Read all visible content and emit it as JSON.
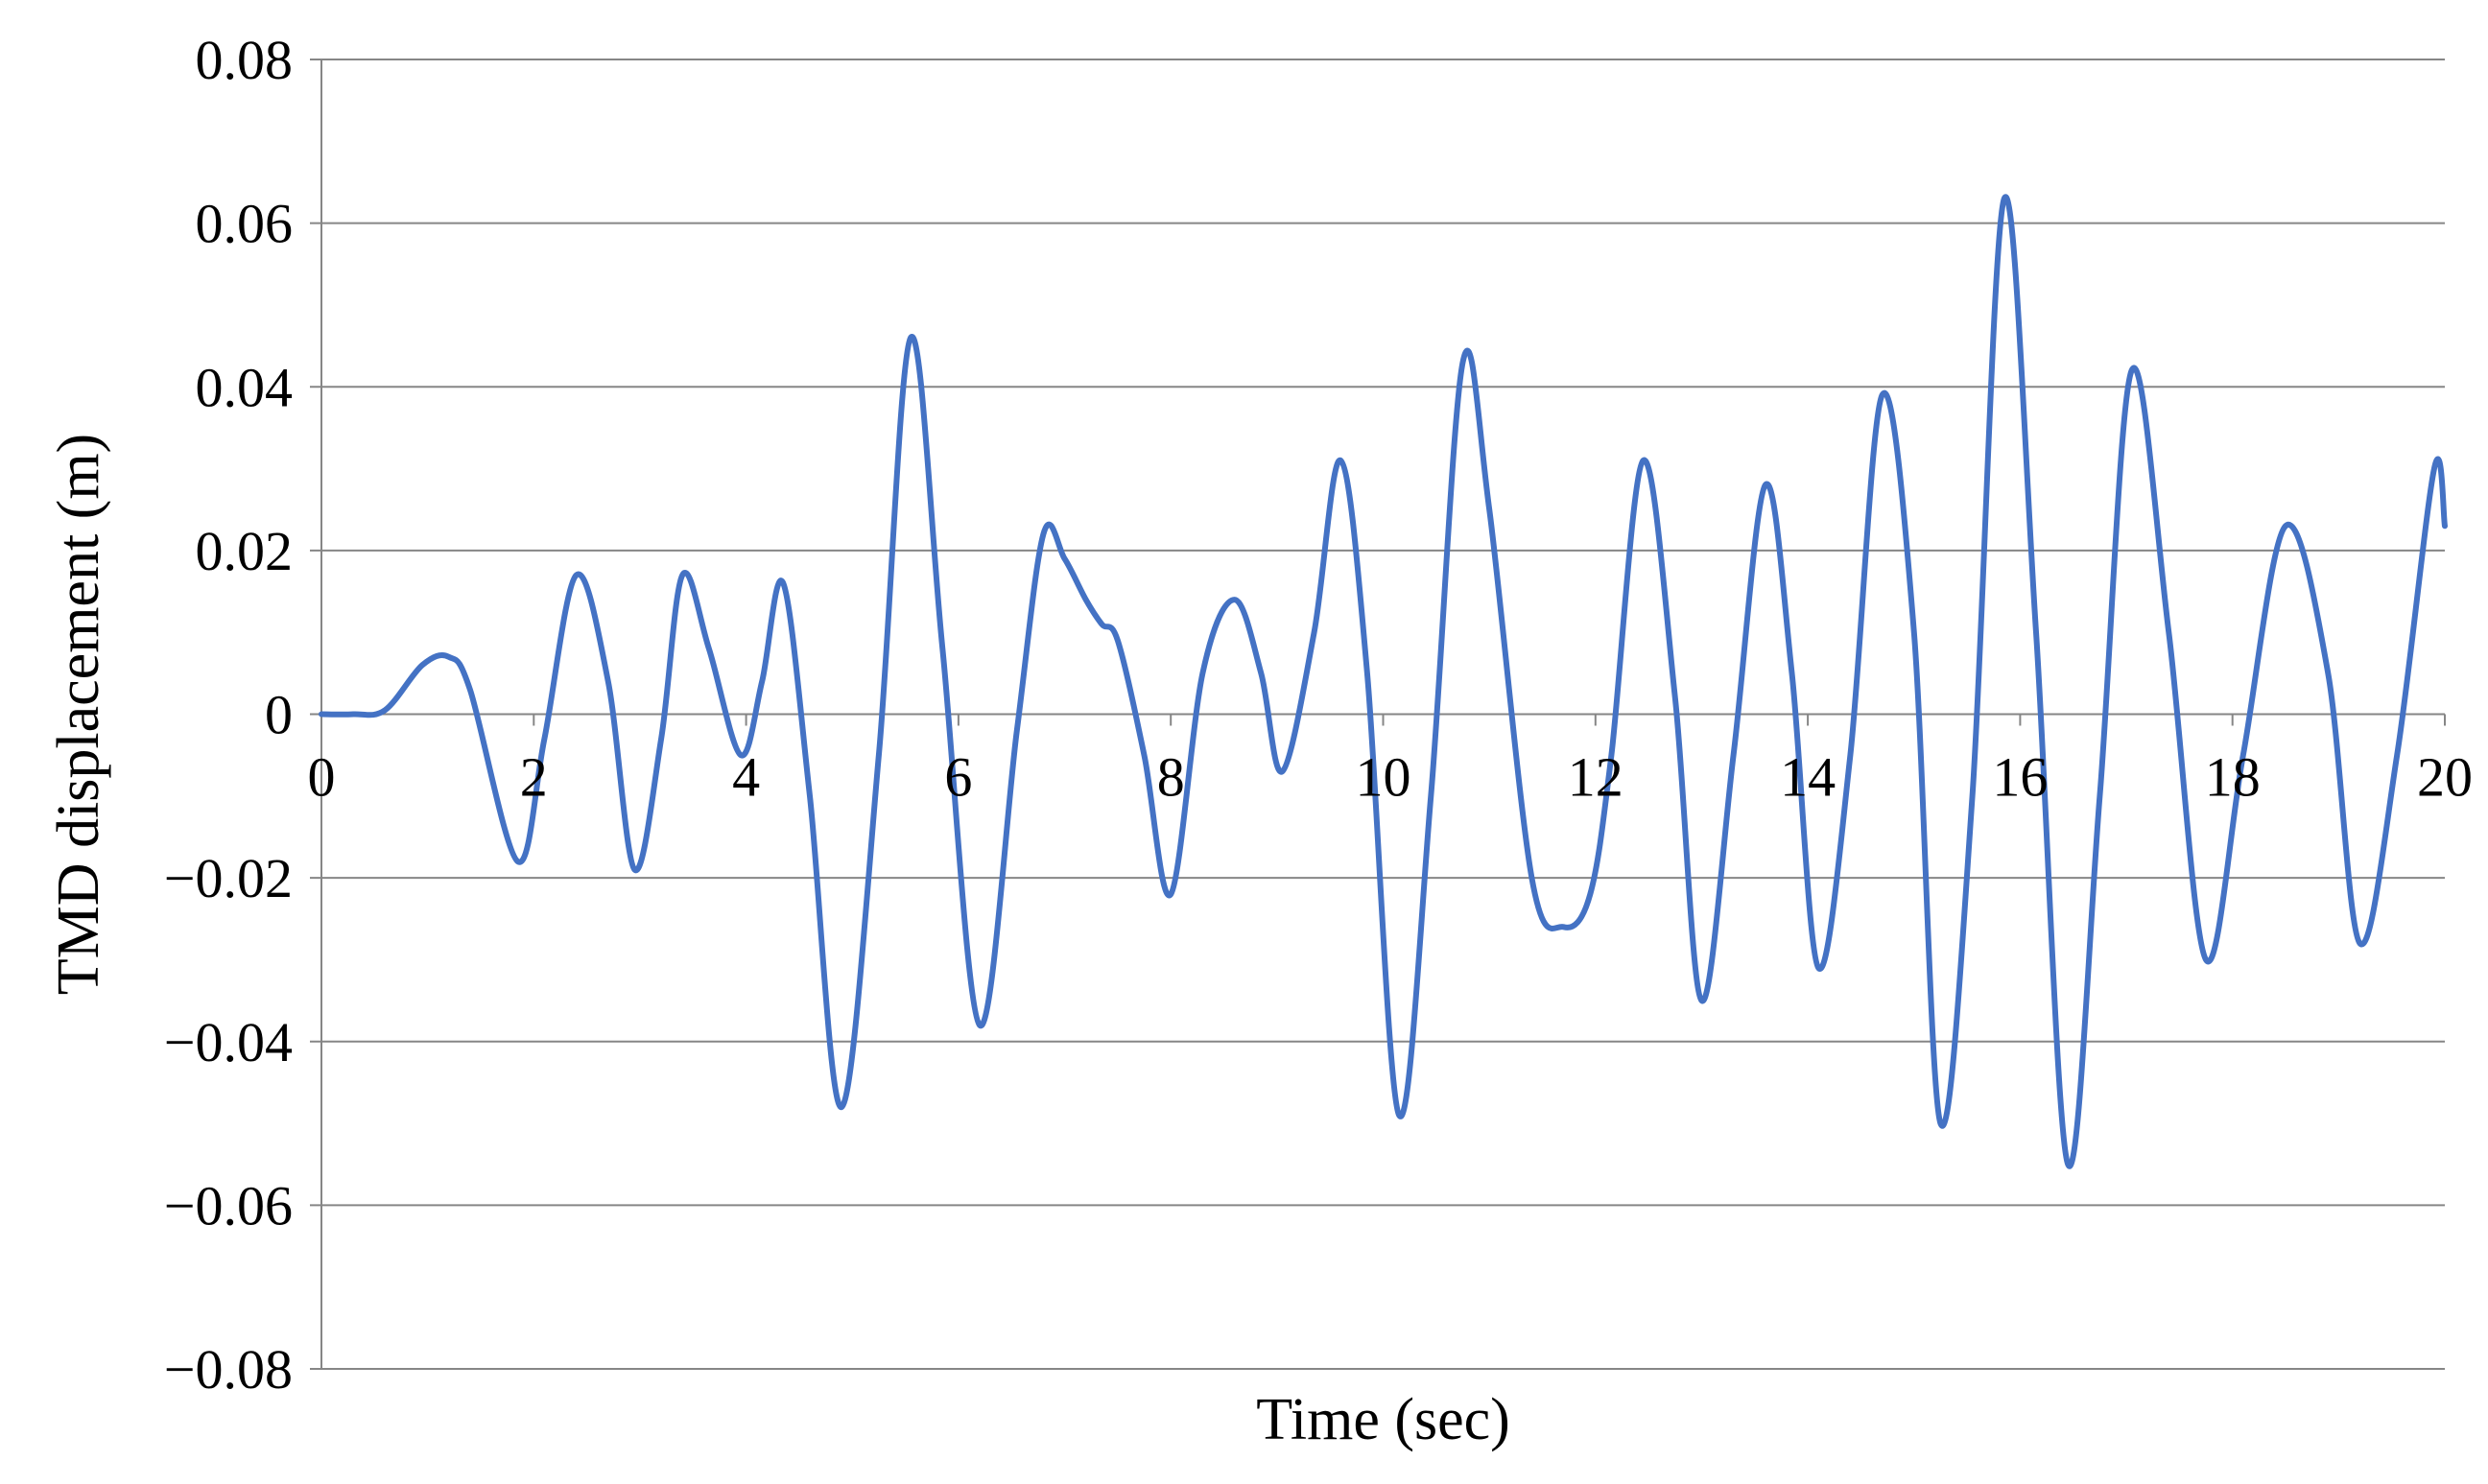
{
  "chart_data": {
    "type": "line",
    "title": "",
    "xlabel": "Time (sec)",
    "ylabel": "TMD displacement (m)",
    "xlim": [
      0,
      20
    ],
    "ylim": [
      -0.08,
      0.08
    ],
    "x_ticks": [
      0,
      2,
      4,
      6,
      8,
      10,
      12,
      14,
      16,
      18,
      20
    ],
    "x_tick_labels": [
      "0",
      "2",
      "4",
      "6",
      "8",
      "10",
      "12",
      "14",
      "16",
      "18",
      "20"
    ],
    "y_ticks": [
      0.08,
      0.06,
      0.04,
      0.02,
      0,
      -0.02,
      -0.04,
      -0.06,
      -0.08
    ],
    "y_tick_labels": [
      "0.08",
      "0.06",
      "0.04",
      "0.02",
      "0",
      "−0.02",
      "−0.04",
      "−0.06",
      "−0.08"
    ],
    "grid": "horizontal",
    "legend": "none",
    "line_color": "#4472C4",
    "axis_color": "#868686",
    "grid_color": "#868686",
    "label_color": "#000000",
    "series": [
      {
        "x": [
          0,
          0.3,
          0.6,
          0.95,
          1.2,
          1.4,
          1.85,
          2.1,
          2.4,
          2.7,
          2.95,
          3.2,
          3.4,
          3.65,
          3.95,
          4.15,
          4.35,
          4.6,
          4.9,
          5.25,
          5.55,
          5.85,
          6.2,
          6.55,
          6.8,
          7.0,
          7.2,
          7.35,
          7.5,
          7.75,
          8.0,
          8.3,
          8.6,
          8.85,
          9.05,
          9.35,
          9.6,
          9.85,
          10.15,
          10.45,
          10.75,
          11.0,
          11.4,
          11.7,
          11.95,
          12.15,
          12.45,
          12.75,
          13.0,
          13.3,
          13.6,
          13.85,
          14.1,
          14.4,
          14.7,
          15.0,
          15.25,
          15.55,
          15.85,
          16.15,
          16.45,
          16.75,
          17.05,
          17.4,
          17.75,
          18.1,
          18.5,
          18.9,
          19.2,
          19.55,
          19.9,
          20.0
        ],
        "y": [
          0,
          0,
          0.0005,
          0.006,
          0.007,
          0.003,
          -0.018,
          -0.003,
          0.017,
          0.004,
          -0.019,
          -0.003,
          0.017,
          0.008,
          -0.005,
          0.004,
          0.016,
          -0.01,
          -0.048,
          -0.005,
          0.046,
          0.008,
          -0.038,
          -0.002,
          0.022,
          0.019,
          0.014,
          0.011,
          0.009,
          -0.005,
          -0.022,
          0.005,
          0.014,
          0.005,
          -0.007,
          0.01,
          0.031,
          0.005,
          -0.049,
          -0.01,
          0.043,
          0.025,
          -0.02,
          -0.026,
          -0.022,
          -0.005,
          0.031,
          0.002,
          -0.035,
          -0.005,
          0.028,
          0.005,
          -0.031,
          -0.005,
          0.039,
          0.01,
          -0.05,
          -0.01,
          0.063,
          0.01,
          -0.055,
          -0.01,
          0.042,
          0.01,
          -0.03,
          -0.005,
          0.023,
          0.005,
          -0.028,
          -0.005,
          0.03,
          0.023
        ]
      }
    ]
  }
}
